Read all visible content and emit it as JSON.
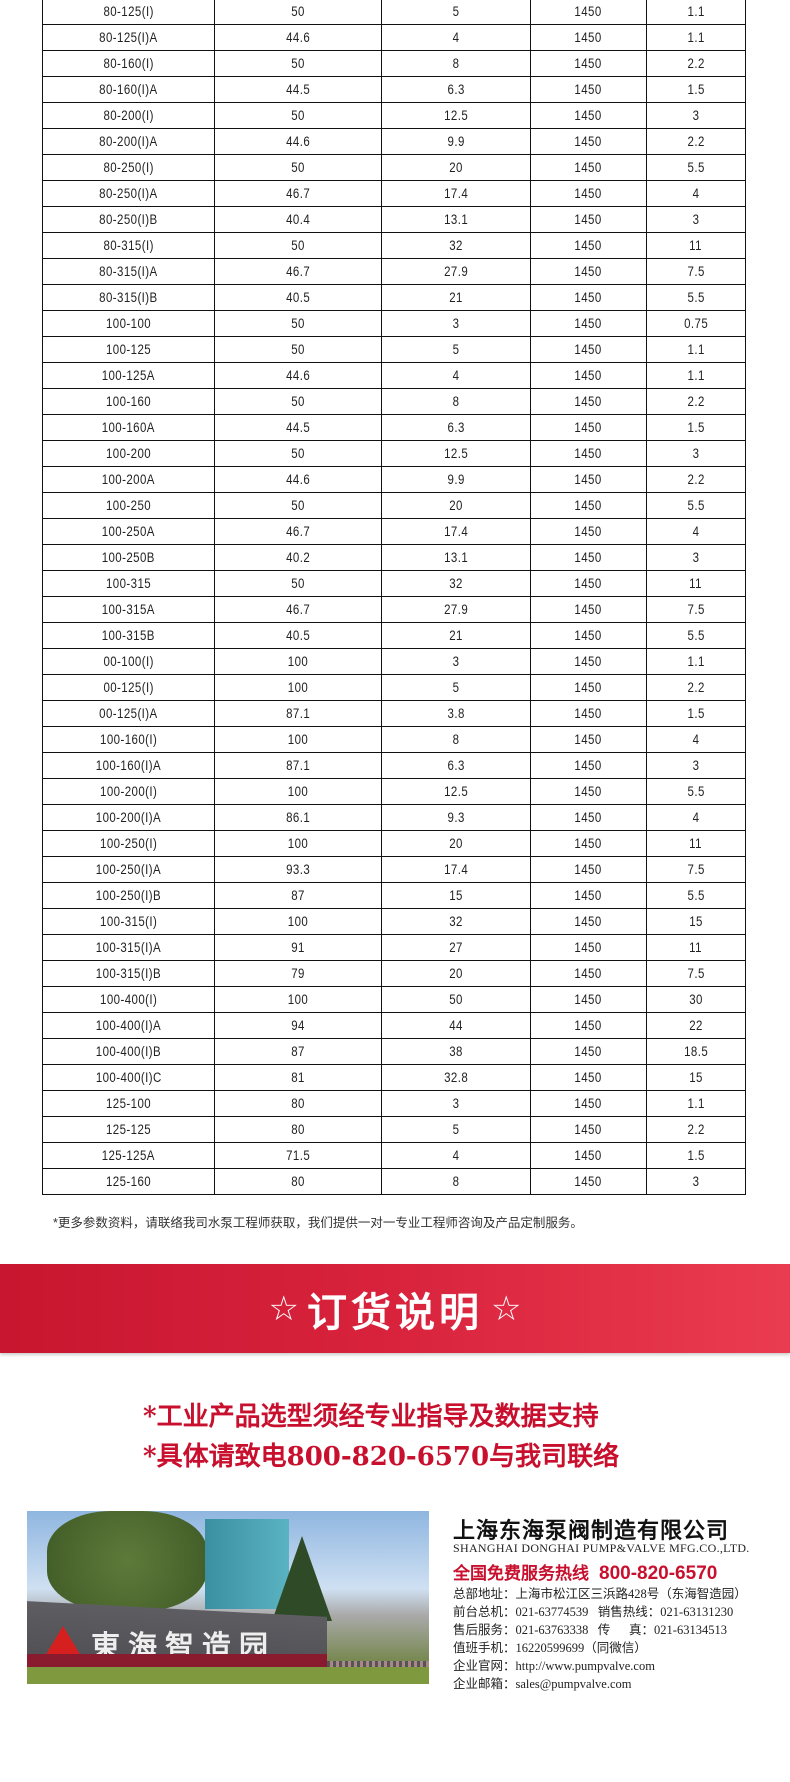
{
  "table": {
    "rows": [
      [
        "80-125(I)",
        "50",
        "5",
        "1450",
        "1.1"
      ],
      [
        "80-125(I)A",
        "44.6",
        "4",
        "1450",
        "1.1"
      ],
      [
        "80-160(I)",
        "50",
        "8",
        "1450",
        "2.2"
      ],
      [
        "80-160(I)A",
        "44.5",
        "6.3",
        "1450",
        "1.5"
      ],
      [
        "80-200(I)",
        "50",
        "12.5",
        "1450",
        "3"
      ],
      [
        "80-200(I)A",
        "44.6",
        "9.9",
        "1450",
        "2.2"
      ],
      [
        "80-250(I)",
        "50",
        "20",
        "1450",
        "5.5"
      ],
      [
        "80-250(I)A",
        "46.7",
        "17.4",
        "1450",
        "4"
      ],
      [
        "80-250(I)B",
        "40.4",
        "13.1",
        "1450",
        "3"
      ],
      [
        "80-315(I)",
        "50",
        "32",
        "1450",
        "11"
      ],
      [
        "80-315(I)A",
        "46.7",
        "27.9",
        "1450",
        "7.5"
      ],
      [
        "80-315(I)B",
        "40.5",
        "21",
        "1450",
        "5.5"
      ],
      [
        "100-100",
        "50",
        "3",
        "1450",
        "0.75"
      ],
      [
        "100-125",
        "50",
        "5",
        "1450",
        "1.1"
      ],
      [
        "100-125A",
        "44.6",
        "4",
        "1450",
        "1.1"
      ],
      [
        "100-160",
        "50",
        "8",
        "1450",
        "2.2"
      ],
      [
        "100-160A",
        "44.5",
        "6.3",
        "1450",
        "1.5"
      ],
      [
        "100-200",
        "50",
        "12.5",
        "1450",
        "3"
      ],
      [
        "100-200A",
        "44.6",
        "9.9",
        "1450",
        "2.2"
      ],
      [
        "100-250",
        "50",
        "20",
        "1450",
        "5.5"
      ],
      [
        "100-250A",
        "46.7",
        "17.4",
        "1450",
        "4"
      ],
      [
        "100-250B",
        "40.2",
        "13.1",
        "1450",
        "3"
      ],
      [
        "100-315",
        "50",
        "32",
        "1450",
        "11"
      ],
      [
        "100-315A",
        "46.7",
        "27.9",
        "1450",
        "7.5"
      ],
      [
        "100-315B",
        "40.5",
        "21",
        "1450",
        "5.5"
      ],
      [
        "00-100(I)",
        "100",
        "3",
        "1450",
        "1.1"
      ],
      [
        "00-125(I)",
        "100",
        "5",
        "1450",
        "2.2"
      ],
      [
        "00-125(I)A",
        "87.1",
        "3.8",
        "1450",
        "1.5"
      ],
      [
        "100-160(I)",
        "100",
        "8",
        "1450",
        "4"
      ],
      [
        "100-160(I)A",
        "87.1",
        "6.3",
        "1450",
        "3"
      ],
      [
        "100-200(I)",
        "100",
        "12.5",
        "1450",
        "5.5"
      ],
      [
        "100-200(I)A",
        "86.1",
        "9.3",
        "1450",
        "4"
      ],
      [
        "100-250(I)",
        "100",
        "20",
        "1450",
        "11"
      ],
      [
        "100-250(I)A",
        "93.3",
        "17.4",
        "1450",
        "7.5"
      ],
      [
        "100-250(I)B",
        "87",
        "15",
        "1450",
        "5.5"
      ],
      [
        "100-315(I)",
        "100",
        "32",
        "1450",
        "15"
      ],
      [
        "100-315(I)A",
        "91",
        "27",
        "1450",
        "11"
      ],
      [
        "100-315(I)B",
        "79",
        "20",
        "1450",
        "7.5"
      ],
      [
        "100-400(I)",
        "100",
        "50",
        "1450",
        "30"
      ],
      [
        "100-400(I)A",
        "94",
        "44",
        "1450",
        "22"
      ],
      [
        "100-400(I)B",
        "87",
        "38",
        "1450",
        "18.5"
      ],
      [
        "100-400(I)C",
        "81",
        "32.8",
        "1450",
        "15"
      ],
      [
        "125-100",
        "80",
        "3",
        "1450",
        "1.1"
      ],
      [
        "125-125",
        "80",
        "5",
        "1450",
        "2.2"
      ],
      [
        "125-125A",
        "71.5",
        "4",
        "1450",
        "1.5"
      ],
      [
        "125-160",
        "80",
        "8",
        "1450",
        "3"
      ]
    ]
  },
  "note": "*更多参数资料，请联络我司水泵工程师获取，我们提供一对一专业工程师咨询及产品定制服务。",
  "banner": {
    "star": "☆",
    "title": "订货说明"
  },
  "order_notes": [
    "*工业产品选型须经专业指导及数据支持",
    "*具体请致电800-820-6570与我司联络"
  ],
  "photo": {
    "sign_text": "東海智造园"
  },
  "company": {
    "name": "上海东海泵阀制造有限公司",
    "name_en": "SHANGHAI DONGHAI PUMP&VALVE MFG.CO.,LTD.",
    "hotline_label": "全国免费服务热线",
    "hotline": "800-820-6570",
    "info": [
      "总部地址：上海市松江区三浜路428号（东海智造园）",
      "前台总机：021-63774539   销售热线：021-63131230",
      "售后服务：021-63763338   传      真：021-63134513",
      "值班手机：16220599699（同微信）",
      "企业官网：http://www.pumpvalve.com",
      "企业邮箱：sales@pumpvalve.com"
    ]
  },
  "colors": {
    "accent_red": "#c8102e",
    "banner_red": "#d9233d"
  }
}
